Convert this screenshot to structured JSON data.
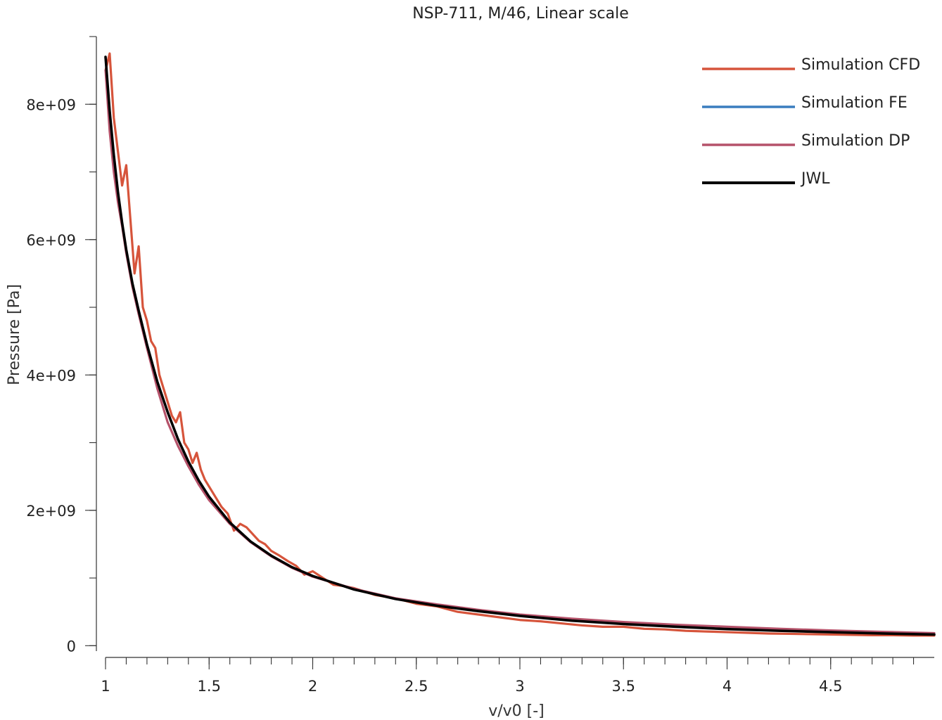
{
  "chart_data": {
    "type": "line",
    "title": "NSP-711, M/46, Linear scale",
    "xlabel": "v/v0 [-]",
    "ylabel": "Pressure [Pa]",
    "xlim": [
      1.0,
      5.0
    ],
    "ylim": [
      -80000000,
      9000000000
    ],
    "x_ticks": [
      1,
      1.5,
      2,
      2.5,
      3,
      3.5,
      4,
      4.5
    ],
    "x_tick_labels": [
      "1",
      "1.5",
      "2",
      "2.5",
      "3",
      "3.5",
      "4",
      "4.5"
    ],
    "x_minor_step": 0.1,
    "y_ticks": [
      0,
      2000000000,
      4000000000,
      6000000000,
      8000000000
    ],
    "y_tick_labels": [
      "0",
      "2e+09",
      "4e+09",
      "6e+09",
      "8e+09"
    ],
    "y_minor_step": 1000000000,
    "grid": false,
    "legend_position": "top-right",
    "series": [
      {
        "name": "Simulation CFD",
        "color": "#d6543b",
        "x": [
          1.0,
          1.02,
          1.04,
          1.06,
          1.08,
          1.1,
          1.12,
          1.14,
          1.16,
          1.18,
          1.2,
          1.22,
          1.24,
          1.26,
          1.28,
          1.3,
          1.32,
          1.34,
          1.36,
          1.38,
          1.4,
          1.42,
          1.44,
          1.46,
          1.48,
          1.5,
          1.53,
          1.56,
          1.59,
          1.62,
          1.65,
          1.68,
          1.71,
          1.74,
          1.77,
          1.8,
          1.84,
          1.88,
          1.92,
          1.96,
          2.0,
          2.05,
          2.1,
          2.15,
          2.2,
          2.25,
          2.3,
          2.4,
          2.5,
          2.6,
          2.7,
          2.8,
          2.9,
          3.0,
          3.1,
          3.2,
          3.3,
          3.4,
          3.5,
          3.6,
          3.7,
          3.8,
          3.9,
          4.0,
          4.1,
          4.2,
          4.3,
          4.4,
          4.5,
          4.6,
          4.7,
          4.8,
          4.9,
          5.0
        ],
        "y": [
          8500000000,
          8750000000,
          7800000000,
          7300000000,
          6800000000,
          7100000000,
          6300000000,
          5500000000,
          5900000000,
          5000000000,
          4800000000,
          4500000000,
          4400000000,
          4000000000,
          3800000000,
          3600000000,
          3400000000,
          3300000000,
          3450000000,
          3000000000,
          2900000000,
          2700000000,
          2850000000,
          2600000000,
          2450000000,
          2350000000,
          2200000000,
          2050000000,
          1950000000,
          1700000000,
          1800000000,
          1750000000,
          1650000000,
          1550000000,
          1500000000,
          1400000000,
          1330000000,
          1250000000,
          1180000000,
          1050000000,
          1100000000,
          1000000000,
          900000000,
          880000000,
          850000000,
          800000000,
          750000000,
          700000000,
          620000000,
          580000000,
          500000000,
          460000000,
          420000000,
          380000000,
          360000000,
          330000000,
          300000000,
          280000000,
          280000000,
          250000000,
          240000000,
          220000000,
          210000000,
          200000000,
          190000000,
          180000000,
          175000000,
          170000000,
          165000000,
          160000000,
          155000000,
          155000000,
          150000000,
          150000000
        ]
      },
      {
        "name": "Simulation FE",
        "color": "#3a7dbf",
        "x": [],
        "y": []
      },
      {
        "name": "Simulation DP",
        "color": "#b5526a",
        "x": [
          1.0,
          1.02,
          1.04,
          1.06,
          1.08,
          1.1,
          1.13,
          1.16,
          1.2,
          1.25,
          1.3,
          1.35,
          1.4,
          1.45,
          1.5,
          1.6,
          1.7,
          1.8,
          1.9,
          2.0,
          2.2,
          2.4,
          2.6,
          2.8,
          3.0,
          3.25,
          3.5,
          3.75,
          4.0,
          4.25,
          4.5,
          4.75,
          5.0
        ],
        "y": [
          8500000000,
          7600000000,
          7000000000,
          6550000000,
          6200000000,
          5800000000,
          5300000000,
          4900000000,
          4400000000,
          3800000000,
          3300000000,
          2950000000,
          2650000000,
          2380000000,
          2150000000,
          1800000000,
          1530000000,
          1320000000,
          1150000000,
          1020000000,
          840000000,
          700000000,
          610000000,
          530000000,
          460000000,
          400000000,
          350000000,
          310000000,
          280000000,
          250000000,
          225000000,
          205000000,
          185000000
        ]
      },
      {
        "name": "JWL",
        "color": "#000000",
        "x": [
          1.0,
          1.02,
          1.04,
          1.06,
          1.08,
          1.1,
          1.13,
          1.16,
          1.2,
          1.25,
          1.3,
          1.35,
          1.4,
          1.45,
          1.5,
          1.6,
          1.7,
          1.8,
          1.9,
          2.0,
          2.2,
          2.4,
          2.6,
          2.8,
          3.0,
          3.25,
          3.5,
          3.75,
          4.0,
          4.25,
          4.5,
          4.75,
          5.0
        ],
        "y": [
          8700000000,
          7900000000,
          7250000000,
          6700000000,
          6250000000,
          5850000000,
          5350000000,
          4950000000,
          4450000000,
          3900000000,
          3450000000,
          3050000000,
          2720000000,
          2440000000,
          2200000000,
          1820000000,
          1540000000,
          1330000000,
          1160000000,
          1030000000,
          830000000,
          690000000,
          590000000,
          510000000,
          440000000,
          370000000,
          320000000,
          280000000,
          245000000,
          220000000,
          200000000,
          180000000,
          165000000
        ]
      }
    ]
  }
}
